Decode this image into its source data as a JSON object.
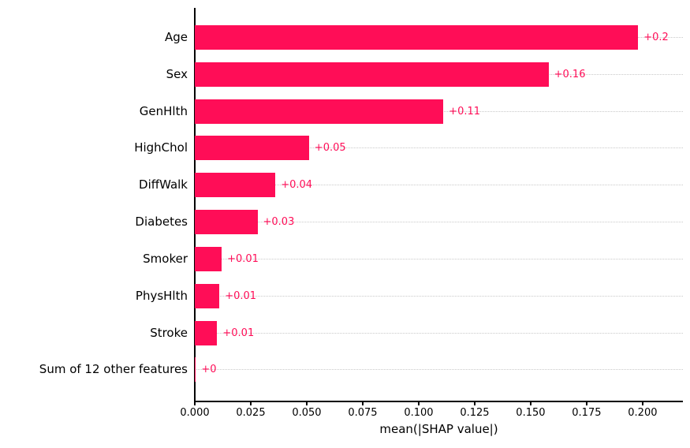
{
  "chart_data": {
    "type": "bar",
    "orientation": "horizontal",
    "title": "",
    "xlabel": "mean(|SHAP value|)",
    "ylabel": "",
    "categories": [
      "Age",
      "Sex",
      "GenHlth",
      "HighChol",
      "DiffWalk",
      "Diabetes",
      "Smoker",
      "PhysHlth",
      "Stroke",
      "Sum of 12 other features"
    ],
    "values": [
      0.198,
      0.158,
      0.111,
      0.051,
      0.036,
      0.028,
      0.012,
      0.011,
      0.01,
      0.0005
    ],
    "value_labels": [
      "+0.2",
      "+0.16",
      "+0.11",
      "+0.05",
      "+0.04",
      "+0.03",
      "+0.01",
      "+0.01",
      "+0.01",
      "+0"
    ],
    "xlim": [
      0,
      0.218
    ],
    "xticks": [
      0,
      0.025,
      0.05,
      0.075,
      0.1,
      0.125,
      0.15,
      0.175,
      0.2
    ],
    "xtick_labels": [
      "0.000",
      "0.025",
      "0.050",
      "0.075",
      "0.100",
      "0.125",
      "0.150",
      "0.175",
      "0.200"
    ],
    "grid": "horizontal-dotted",
    "legend": "none",
    "colors": {
      "bar": "#ff0d57",
      "value_label": "#ff0d57",
      "grid": "#c9c9c9",
      "axis": "#000000",
      "text": "#000000"
    }
  }
}
